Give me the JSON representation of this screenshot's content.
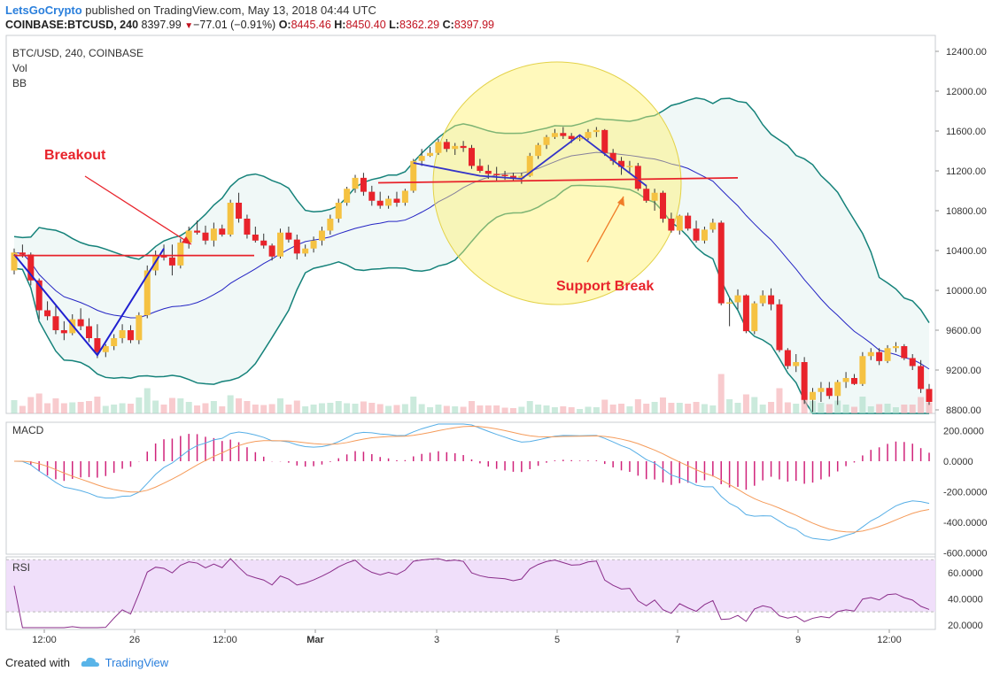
{
  "header": {
    "author": "LetsGoCrypto",
    "published_text": " published on TradingView.com, May 13, 2018 04:44 UTC",
    "symbol": "COINBASE:BTCUSD, 240",
    "last": "8397.99",
    "change": "−77.01 (−0.91%)",
    "open_label": "O:",
    "open": "8445.46",
    "high_label": "H:",
    "high": "8450.40",
    "low_label": "L:",
    "low": "8362.29",
    "close_label": "C:",
    "close": "8397.99"
  },
  "legend": {
    "title": "BTC/USD, 240, COINBASE",
    "vol": "Vol",
    "bb": "BB"
  },
  "annotations": {
    "breakout": "Breakout",
    "support_break": "Support Break"
  },
  "panes": {
    "macd": "MACD",
    "rsi": "RSI"
  },
  "footer": {
    "created_with": "Created with",
    "brand": "TradingView"
  },
  "colors": {
    "bull": "#f5c242",
    "bear": "#e8232b",
    "bb_band": "#15827a",
    "basis": "#2424c4",
    "annot": "#e8232b",
    "highlight": "#fff26a"
  },
  "chart_data": [
    {
      "type": "candlestick",
      "title": "BTC/USD, 240, COINBASE",
      "y_ticks": [
        "12400.00",
        "12000.00",
        "11600.00",
        "11200.00",
        "10800.00",
        "10400.00",
        "10000.00",
        "9600.00",
        "9200.00",
        "8800.00"
      ],
      "ylim": [
        8770,
        12500
      ],
      "x_ticks": [
        "12:00",
        "26",
        "12:00",
        "Mar",
        "3",
        "5",
        "7",
        "9",
        "12:00"
      ],
      "candles_ohlc": [
        [
          10200,
          10420,
          10160,
          10380
        ],
        [
          10380,
          10460,
          10330,
          10360
        ],
        [
          10360,
          10380,
          10050,
          10100
        ],
        [
          10100,
          10120,
          9710,
          9800
        ],
        [
          9800,
          9890,
          9700,
          9740
        ],
        [
          9740,
          9860,
          9560,
          9600
        ],
        [
          9600,
          9690,
          9500,
          9570
        ],
        [
          9570,
          9760,
          9550,
          9710
        ],
        [
          9710,
          9820,
          9600,
          9640
        ],
        [
          9640,
          9720,
          9480,
          9520
        ],
        [
          9520,
          9660,
          9320,
          9380
        ],
        [
          9380,
          9460,
          9330,
          9440
        ],
        [
          9440,
          9560,
          9400,
          9520
        ],
        [
          9520,
          9660,
          9470,
          9600
        ],
        [
          9600,
          9650,
          9470,
          9500
        ],
        [
          9500,
          9780,
          9460,
          9750
        ],
        [
          9750,
          10250,
          9720,
          10200
        ],
        [
          10200,
          10400,
          10150,
          10350
        ],
        [
          10350,
          10460,
          10300,
          10330
        ],
        [
          10330,
          10460,
          10150,
          10250
        ],
        [
          10250,
          10520,
          10220,
          10480
        ],
        [
          10480,
          10640,
          10420,
          10600
        ],
        [
          10600,
          10700,
          10560,
          10580
        ],
        [
          10580,
          10650,
          10460,
          10500
        ],
        [
          10500,
          10680,
          10440,
          10620
        ],
        [
          10620,
          10660,
          10540,
          10560
        ],
        [
          10560,
          10910,
          10540,
          10880
        ],
        [
          10880,
          10980,
          10680,
          10720
        ],
        [
          10720,
          10760,
          10520,
          10560
        ],
        [
          10560,
          10640,
          10480,
          10500
        ],
        [
          10500,
          10570,
          10420,
          10450
        ],
        [
          10450,
          10470,
          10300,
          10340
        ],
        [
          10340,
          10620,
          10320,
          10580
        ],
        [
          10580,
          10640,
          10480,
          10510
        ],
        [
          10510,
          10560,
          10310,
          10370
        ],
        [
          10370,
          10460,
          10340,
          10420
        ],
        [
          10420,
          10540,
          10380,
          10500
        ],
        [
          10500,
          10640,
          10450,
          10600
        ],
        [
          10600,
          10760,
          10560,
          10720
        ],
        [
          10720,
          10920,
          10680,
          10880
        ],
        [
          10880,
          11040,
          10850,
          11020
        ],
        [
          11020,
          11160,
          10980,
          11130
        ],
        [
          11130,
          11180,
          10950,
          10990
        ],
        [
          10990,
          11050,
          10850,
          10900
        ],
        [
          10900,
          10990,
          10820,
          10850
        ],
        [
          10850,
          10950,
          10820,
          10920
        ],
        [
          10920,
          10990,
          10840,
          10880
        ],
        [
          10880,
          11020,
          10850,
          11000
        ],
        [
          11000,
          11320,
          10980,
          11300
        ],
        [
          11300,
          11420,
          11250,
          11350
        ],
        [
          11350,
          11440,
          11340,
          11380
        ],
        [
          11380,
          11520,
          11360,
          11490
        ],
        [
          11490,
          11520,
          11390,
          11420
        ],
        [
          11420,
          11480,
          11360,
          11450
        ],
        [
          11450,
          11500,
          11390,
          11430
        ],
        [
          11430,
          11460,
          11220,
          11250
        ],
        [
          11250,
          11320,
          11180,
          11200
        ],
        [
          11200,
          11260,
          11120,
          11170
        ],
        [
          11170,
          11240,
          11100,
          11160
        ],
        [
          11160,
          11200,
          11110,
          11150
        ],
        [
          11150,
          11180,
          11100,
          11120
        ],
        [
          11120,
          11180,
          11070,
          11150
        ],
        [
          11150,
          11380,
          11140,
          11350
        ],
        [
          11350,
          11480,
          11320,
          11460
        ],
        [
          11460,
          11560,
          11420,
          11540
        ],
        [
          11540,
          11620,
          11520,
          11580
        ],
        [
          11580,
          11640,
          11520,
          11550
        ],
        [
          11550,
          11580,
          11480,
          11520
        ],
        [
          11520,
          11560,
          11500,
          11530
        ],
        [
          11530,
          11620,
          11510,
          11590
        ],
        [
          11590,
          11640,
          11540,
          11610
        ],
        [
          11610,
          11620,
          11350,
          11380
        ],
        [
          11380,
          11420,
          11260,
          11300
        ],
        [
          11300,
          11340,
          11160,
          11240
        ],
        [
          11240,
          11300,
          11180,
          11250
        ],
        [
          11250,
          11280,
          11000,
          11020
        ],
        [
          11020,
          11060,
          10880,
          10900
        ],
        [
          10900,
          11020,
          10800,
          10980
        ],
        [
          10980,
          11000,
          10680,
          10720
        ],
        [
          10720,
          10780,
          10580,
          10600
        ],
        [
          10600,
          10760,
          10560,
          10750
        ],
        [
          10750,
          10780,
          10600,
          10620
        ],
        [
          10620,
          10700,
          10480,
          10500
        ],
        [
          10500,
          10640,
          10470,
          10610
        ],
        [
          10610,
          10720,
          10580,
          10680
        ],
        [
          10680,
          10700,
          9850,
          9870
        ],
        [
          9870,
          9920,
          9640,
          9880
        ],
        [
          9880,
          10010,
          9810,
          9950
        ],
        [
          9950,
          9960,
          9570,
          9590
        ],
        [
          9590,
          9890,
          9560,
          9870
        ],
        [
          9870,
          10000,
          9840,
          9950
        ],
        [
          9950,
          10020,
          9800,
          9860
        ],
        [
          9860,
          9910,
          9380,
          9400
        ],
        [
          9400,
          9420,
          9210,
          9240
        ],
        [
          9240,
          9360,
          9180,
          9280
        ],
        [
          9280,
          9330,
          8860,
          8900
        ],
        [
          8900,
          9020,
          8780,
          8980
        ],
        [
          8980,
          9080,
          8880,
          9020
        ],
        [
          9020,
          9080,
          8910,
          8940
        ],
        [
          8940,
          9100,
          8850,
          9080
        ],
        [
          9080,
          9180,
          9020,
          9120
        ],
        [
          9120,
          9160,
          9050,
          9060
        ],
        [
          9060,
          9380,
          9040,
          9340
        ],
        [
          9340,
          9420,
          9300,
          9380
        ],
        [
          9380,
          9420,
          9250,
          9290
        ],
        [
          9290,
          9450,
          9270,
          9420
        ],
        [
          9420,
          9480,
          9380,
          9440
        ],
        [
          9440,
          9460,
          9300,
          9320
        ],
        [
          9320,
          9360,
          9200,
          9240
        ],
        [
          9240,
          9300,
          8970,
          9010
        ],
        [
          9010,
          9060,
          8850,
          8880
        ]
      ],
      "indicators": [
        "Vol",
        "BB"
      ]
    },
    {
      "type": "line",
      "title": "MACD",
      "y_ticks": [
        "200.0000",
        "0.0000",
        "-200.0000",
        "-400.0000",
        "-600.0000"
      ],
      "ylim": [
        -600,
        260
      ]
    },
    {
      "type": "line",
      "title": "RSI",
      "y_ticks": [
        "60.0000",
        "40.0000",
        "20.0000"
      ],
      "ylim": [
        15,
        75
      ],
      "band": [
        30,
        70
      ]
    }
  ]
}
